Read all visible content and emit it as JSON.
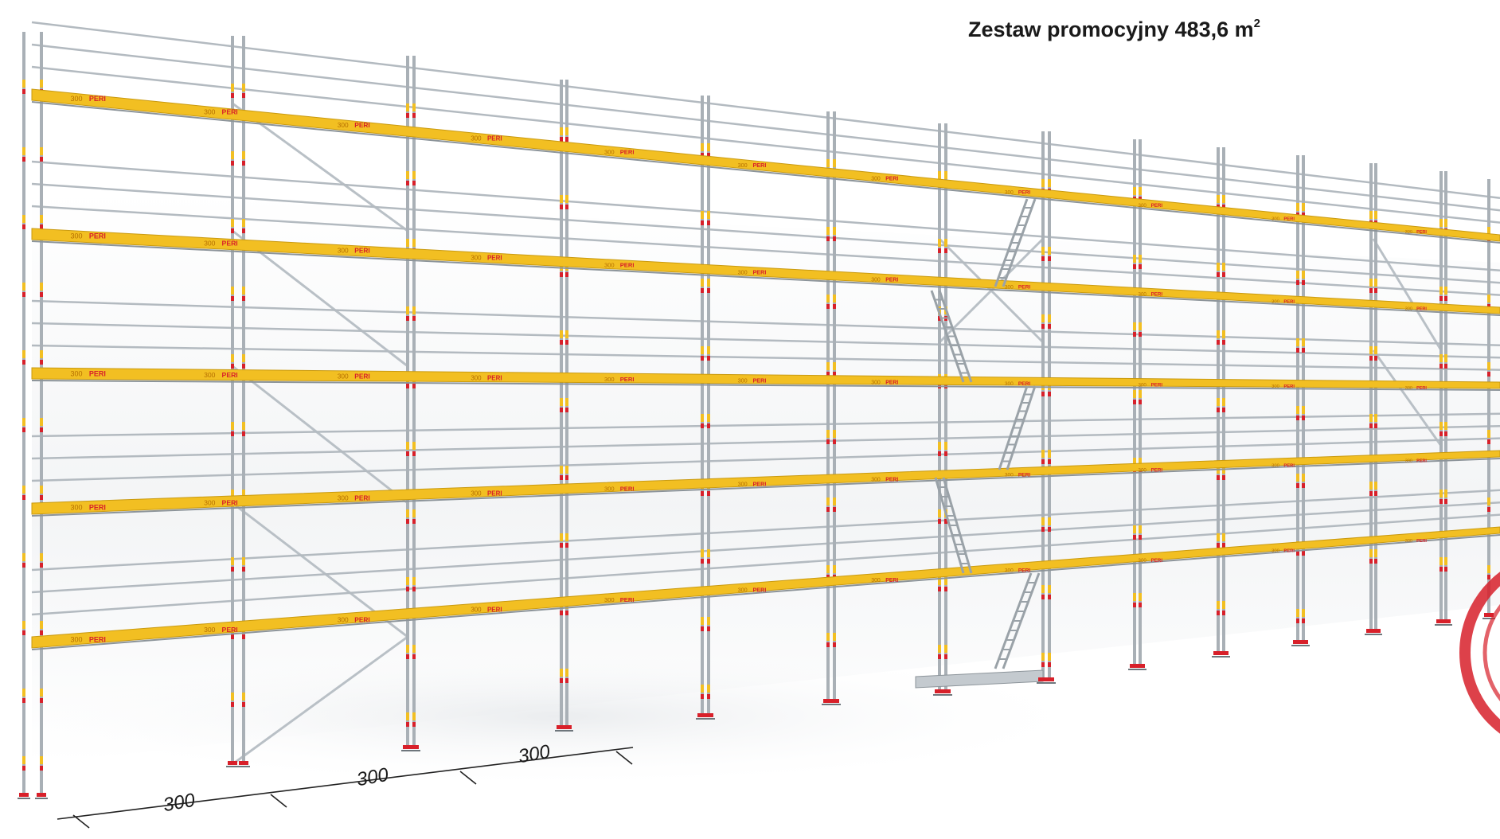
{
  "title": {
    "text": "Zestaw promocyjny 483,6 m",
    "superscript": "2"
  },
  "dimensions": [
    "300",
    "300",
    "300"
  ],
  "deck_labels": {
    "size": "300",
    "brand": "PERI"
  },
  "colors": {
    "deck_yellow": "#f2bf22",
    "frame_grey": "#a9b0b6",
    "brand_red": "#d8202a",
    "stamp_red": "#d7202a"
  },
  "icons": [
    "scaffold-illustration",
    "ladder-icon",
    "promo-stamp-icon"
  ]
}
